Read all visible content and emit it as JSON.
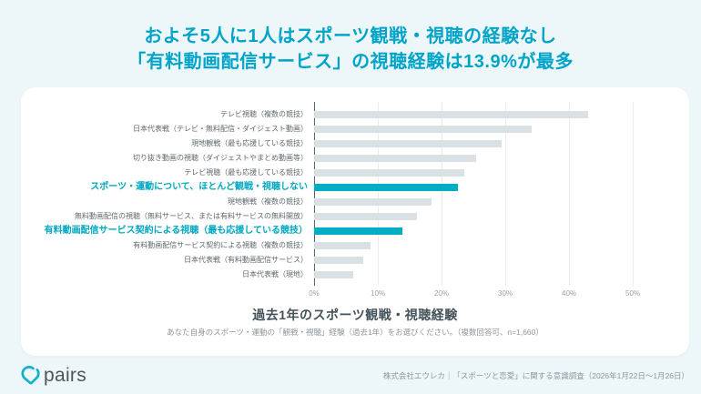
{
  "page": {
    "title_line1": "およそ5人に1人はスポーツ観戦・視聴の経験なし",
    "title_line2": "「有料動画配信サービス」の視聴経験は13.9%が最多"
  },
  "chart_data": {
    "type": "bar",
    "orientation": "horizontal",
    "title": "過去1年のスポーツ観戦・視聴経験",
    "subtitle": "あなた自身のスポーツ・運動の「観戦・視聴」経験（過去1年）をお選びください。（複数回答可、n=1,660）",
    "categories": [
      "テレビ視聴（複数の競技）",
      "日本代表戦（テレビ・無料配信・ダイジェスト動画）",
      "現地観戦（最も応援している競技）",
      "切り抜き動画の視聴（ダイジェストやまとめ動画等）",
      "テレビ視聴（最も応援している競技）",
      "スポーツ・運動について、ほとんど観戦・視聴しない",
      "現地観戦（複数の競技）",
      "無料動画配信の視聴（無料サービス、または有料サービスの無料開放）",
      "有料動画配信サービス契約による視聴（最も応援している競技）",
      "有料動画配信サービス契約による視聴（複数の競技）",
      "日本代表戦（有料動画配信サービス）",
      "日本代表戦（現地）"
    ],
    "values": [
      43.0,
      34.2,
      29.4,
      25.4,
      23.5,
      22.6,
      18.4,
      16.1,
      13.9,
      8.8,
      7.7,
      6.2
    ],
    "highlighted_indices": [
      5,
      8
    ],
    "x_ticks": [
      "0%",
      "10%",
      "20%",
      "30%",
      "40%",
      "50%"
    ],
    "xlim": [
      0,
      50
    ],
    "grid": true,
    "legend": false,
    "colors": {
      "bar": "#d9e1e5",
      "bar_highlight": "#00aec3",
      "title_accent": "#00a4c8"
    }
  },
  "footer": {
    "logo_text": "pairs",
    "source": "株式会社エウレカ｜「スポーツと恋愛」に関する意識調査（2026年1月22日～1月26日）"
  }
}
